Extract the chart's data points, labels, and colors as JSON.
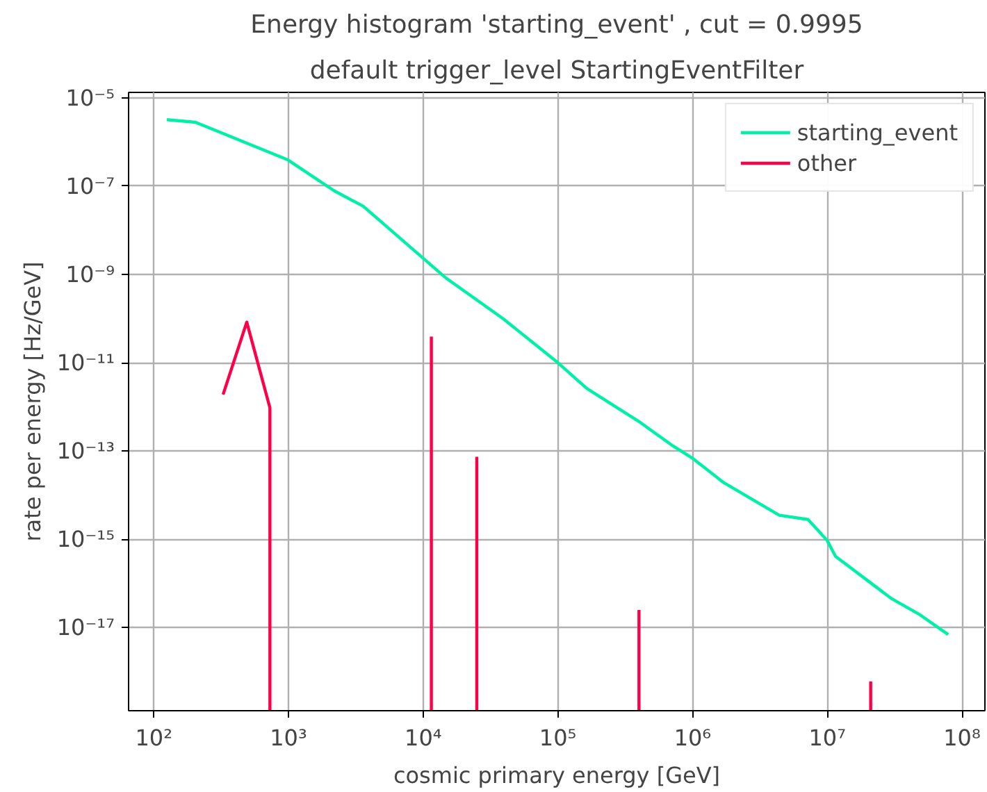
{
  "chart_data": {
    "type": "line",
    "title": "Energy histogram 'starting_event' , cut = 0.9995",
    "subtitle": "default trigger_level StartingEventFilter",
    "xlabel": "cosmic primary energy [GeV]",
    "ylabel": "rate per energy [Hz/GeV]",
    "log": "xy",
    "grid": true,
    "legend": "top right",
    "line_style": "solid",
    "marker": "none",
    "xlim": [
      65,
      148000000
    ],
    "ylim": [
      1.3e-19,
      1.33e-05
    ],
    "xticks": [
      {
        "value": 100,
        "label": "10²"
      },
      {
        "value": 1000,
        "label": "10³"
      },
      {
        "value": 10000,
        "label": "10⁴"
      },
      {
        "value": 100000,
        "label": "10⁵"
      },
      {
        "value": 1000000,
        "label": "10⁶"
      },
      {
        "value": 10000000,
        "label": "10⁷"
      },
      {
        "value": 100000000,
        "label": "10⁸"
      }
    ],
    "yticks": [
      {
        "value": 1e-05,
        "label": "10⁻⁵"
      },
      {
        "value": 1e-07,
        "label": "10⁻⁷"
      },
      {
        "value": 1e-09,
        "label": "10⁻⁹"
      },
      {
        "value": 1e-11,
        "label": "10⁻¹¹"
      },
      {
        "value": 1e-13,
        "label": "10⁻¹³"
      },
      {
        "value": 1e-15,
        "label": "10⁻¹⁵"
      },
      {
        "value": 1e-17,
        "label": "10⁻¹⁷"
      }
    ],
    "series": [
      {
        "name": "starting_event",
        "color": "#00f0a8",
        "x": [
          125,
          204,
          980,
          2190,
          3590,
          14600,
          39400,
          100000,
          164000,
          410000,
          690000,
          1000000,
          1710000,
          4400000,
          7200000,
          10000000,
          11500000,
          30000000,
          48000000,
          79000000
        ],
        "values": [
          3.2e-06,
          2.8e-06,
          4e-07,
          7.8e-08,
          3.5e-08,
          8.5e-10,
          9.8e-11,
          1e-11,
          2.6e-12,
          4.4e-13,
          1.4e-13,
          6.8e-14,
          1.9e-14,
          3.5e-15,
          2.8e-15,
          9.3e-16,
          4.1e-16,
          4.5e-17,
          2e-17,
          6.9e-18
        ]
      },
      {
        "name": "other",
        "color": "#ff0048",
        "x": [
          327,
          490,
          728,
          728
        ],
        "values": [
          1.9e-12,
          8.3e-11,
          9.5e-13,
          1.3e-19
        ]
      },
      {
        "color": "#ff0048",
        "x": [
          11500,
          11500
        ],
        "values": [
          1.3e-19,
          3.9e-11
        ]
      },
      {
        "color": "#ff0048",
        "x": [
          25000,
          25000
        ],
        "values": [
          1.3e-19,
          7.4e-14
        ]
      },
      {
        "color": "#ff0048",
        "x": [
          400000,
          400000
        ],
        "values": [
          1.3e-19,
          2.5e-17
        ]
      },
      {
        "color": "#ff0048",
        "x": [
          21000000,
          21000000
        ],
        "values": [
          1.3e-19,
          6e-19
        ]
      }
    ]
  }
}
